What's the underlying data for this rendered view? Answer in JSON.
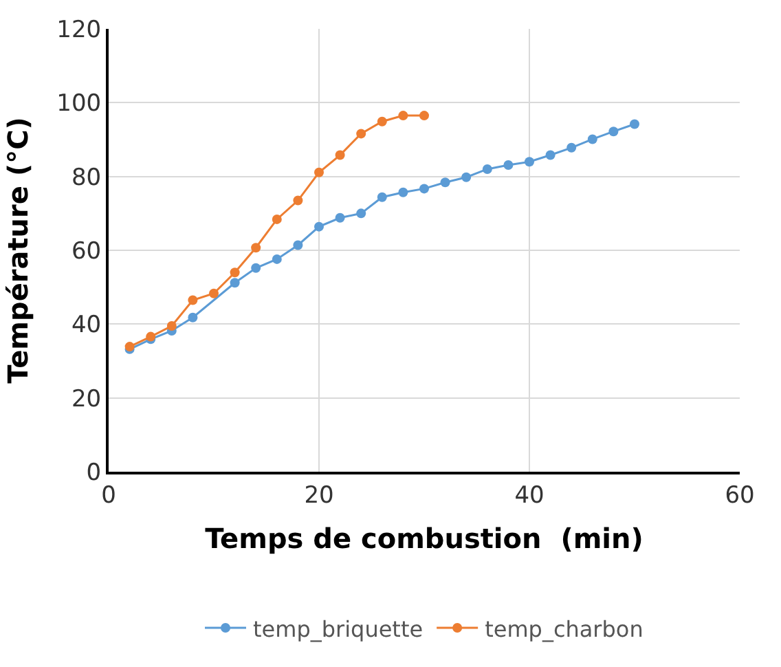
{
  "chart_data": {
    "type": "line",
    "xlabel": "Temps de combustion  (min)",
    "ylabel": "Température (°C)",
    "x": [
      2,
      4,
      6,
      8,
      10,
      12,
      14,
      16,
      18,
      20,
      22,
      24,
      26,
      28,
      30,
      32,
      34,
      36,
      38,
      40,
      42,
      44,
      46,
      48,
      50
    ],
    "series": [
      {
        "name": "temp_briquette",
        "color": "#5b9bd5",
        "values": [
          33.2,
          35.9,
          38.2,
          41.8,
          null,
          51.2,
          55.2,
          57.6,
          61.4,
          66.4,
          68.8,
          70.0,
          74.4,
          75.7,
          76.7,
          78.4,
          79.8,
          82.0,
          83.1,
          84.0,
          85.8,
          87.8,
          90.1,
          92.2,
          94.2
        ]
      },
      {
        "name": "temp_charbon",
        "color": "#ed7d31",
        "x": [
          2,
          4,
          6,
          8,
          10,
          12,
          14,
          16,
          18,
          20,
          22,
          24,
          26,
          28,
          30
        ],
        "values": [
          33.9,
          36.6,
          39.5,
          46.5,
          48.3,
          54.0,
          60.7,
          68.4,
          73.5,
          81.1,
          85.8,
          91.6,
          94.9,
          96.5,
          96.5
        ]
      }
    ],
    "xlim": [
      0,
      60
    ],
    "xticks": [
      0,
      20,
      40,
      60
    ],
    "ylim": [
      0,
      120
    ],
    "yticks": [
      0,
      20,
      40,
      60,
      80,
      100,
      120
    ],
    "grid": true,
    "legend": "bottom",
    "marker": "circle",
    "line_style": "solid"
  }
}
